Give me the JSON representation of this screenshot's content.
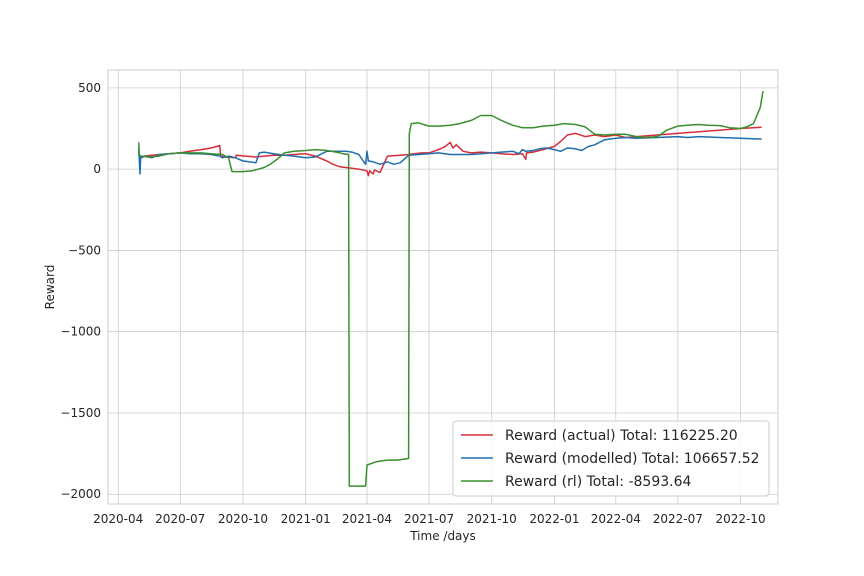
{
  "chart_data": {
    "type": "line",
    "title": "",
    "xlabel": "Time /days",
    "ylabel": "Reward",
    "x_ticks": [
      "2020-04",
      "2020-07",
      "2020-10",
      "2021-01",
      "2021-04",
      "2021-07",
      "2021-10",
      "2022-01",
      "2022-04",
      "2022-07",
      "2022-10"
    ],
    "y_ticks": [
      500,
      0,
      -500,
      -1000,
      -1500,
      -2000
    ],
    "y_tick_labels": [
      "500",
      "0",
      "−500",
      "−1000",
      "−1500",
      "−2000"
    ],
    "xlim": [
      "2020-03-17",
      "2022-11-25"
    ],
    "ylim": [
      -2060,
      610
    ],
    "grid": true,
    "legend_position": "lower-right",
    "series": [
      {
        "name": "Reward (actual) Total: 116225.20",
        "color": "#d62f3a",
        "x": [
          "2020-05-01",
          "2020-05-02",
          "2020-05-10",
          "2020-05-20",
          "2020-06-01",
          "2020-06-15",
          "2020-07-01",
          "2020-07-15",
          "2020-08-01",
          "2020-08-15",
          "2020-08-28",
          "2020-08-29",
          "2020-09-05",
          "2020-09-20",
          "2020-09-21",
          "2020-10-05",
          "2020-10-20",
          "2020-11-01",
          "2020-11-15",
          "2020-12-01",
          "2020-12-15",
          "2021-01-01",
          "2021-01-15",
          "2021-02-01",
          "2021-02-10",
          "2021-02-20",
          "2021-03-01",
          "2021-03-10",
          "2021-03-20",
          "2021-04-01",
          "2021-04-03",
          "2021-04-05",
          "2021-04-10",
          "2021-04-12",
          "2021-04-20",
          "2021-05-01",
          "2021-05-20",
          "2021-06-01",
          "2021-06-10",
          "2021-06-20",
          "2021-07-01",
          "2021-07-15",
          "2021-07-25",
          "2021-08-01",
          "2021-08-05",
          "2021-08-10",
          "2021-08-20",
          "2021-09-01",
          "2021-09-15",
          "2021-10-01",
          "2021-10-15",
          "2021-11-01",
          "2021-11-15",
          "2021-11-20",
          "2021-11-21",
          "2021-12-01",
          "2021-12-15",
          "2022-01-01",
          "2022-01-10",
          "2022-01-20",
          "2022-02-01",
          "2022-02-15",
          "2022-03-01",
          "2022-03-15",
          "2022-04-01",
          "2022-04-15",
          "2022-05-01",
          "2022-06-01",
          "2022-07-01",
          "2022-08-01",
          "2022-09-01",
          "2022-10-01",
          "2022-11-01"
        ],
        "values": [
          110,
          75,
          80,
          85,
          90,
          95,
          100,
          110,
          120,
          130,
          145,
          80,
          75,
          70,
          85,
          80,
          75,
          80,
          85,
          85,
          90,
          95,
          80,
          50,
          30,
          15,
          10,
          5,
          0,
          -10,
          -40,
          -10,
          -30,
          -5,
          -20,
          80,
          85,
          90,
          95,
          100,
          100,
          120,
          140,
          165,
          130,
          150,
          110,
          100,
          105,
          100,
          95,
          90,
          95,
          60,
          100,
          105,
          120,
          140,
          170,
          210,
          220,
          200,
          210,
          200,
          210,
          195,
          200,
          210,
          220,
          230,
          240,
          250,
          258
        ]
      },
      {
        "name": "Reward (modelled) Total: 106657.52",
        "color": "#1f6fad",
        "x": [
          "2020-05-01",
          "2020-05-03",
          "2020-05-04",
          "2020-05-05",
          "2020-05-10",
          "2020-05-20",
          "2020-06-01",
          "2020-06-15",
          "2020-07-01",
          "2020-07-15",
          "2020-08-01",
          "2020-08-15",
          "2020-08-28",
          "2020-09-01",
          "2020-09-10",
          "2020-09-20",
          "2020-10-01",
          "2020-10-10",
          "2020-10-20",
          "2020-10-25",
          "2020-11-01",
          "2020-11-15",
          "2020-12-01",
          "2020-12-15",
          "2021-01-01",
          "2021-01-15",
          "2021-02-01",
          "2021-02-15",
          "2021-03-01",
          "2021-03-10",
          "2021-03-20",
          "2021-03-30",
          "2021-04-01",
          "2021-04-03",
          "2021-04-10",
          "2021-04-20",
          "2021-05-01",
          "2021-05-10",
          "2021-05-20",
          "2021-06-01",
          "2021-06-15",
          "2021-07-01",
          "2021-07-15",
          "2021-08-01",
          "2021-08-15",
          "2021-09-01",
          "2021-09-15",
          "2021-10-01",
          "2021-10-15",
          "2021-11-01",
          "2021-11-10",
          "2021-11-15",
          "2021-11-20",
          "2021-12-01",
          "2021-12-10",
          "2021-12-20",
          "2022-01-01",
          "2022-01-10",
          "2022-01-20",
          "2022-02-01",
          "2022-02-10",
          "2022-02-20",
          "2022-03-01",
          "2022-03-15",
          "2022-04-01",
          "2022-04-15",
          "2022-05-01",
          "2022-06-01",
          "2022-07-01",
          "2022-07-15",
          "2022-08-01",
          "2022-09-01",
          "2022-10-01",
          "2022-11-01"
        ],
        "values": [
          130,
          -30,
          80,
          70,
          80,
          70,
          90,
          95,
          100,
          95,
          95,
          90,
          80,
          70,
          80,
          70,
          50,
          45,
          40,
          100,
          105,
          95,
          85,
          80,
          70,
          75,
          110,
          110,
          110,
          105,
          90,
          30,
          110,
          50,
          45,
          30,
          45,
          30,
          40,
          85,
          90,
          95,
          100,
          90,
          90,
          90,
          95,
          100,
          105,
          110,
          95,
          120,
          110,
          115,
          125,
          130,
          120,
          110,
          130,
          125,
          115,
          140,
          150,
          180,
          190,
          195,
          190,
          195,
          200,
          195,
          200,
          195,
          190,
          185
        ]
      },
      {
        "name": "Reward (rl) Total: -8593.64",
        "color": "#3a8f2e",
        "x": [
          "2020-05-01",
          "2020-05-02",
          "2020-05-05",
          "2020-05-15",
          "2020-05-30",
          "2020-06-15",
          "2020-07-01",
          "2020-07-15",
          "2020-08-01",
          "2020-08-15",
          "2020-09-01",
          "2020-09-10",
          "2020-09-15",
          "2020-10-01",
          "2020-10-15",
          "2020-11-01",
          "2020-11-10",
          "2020-11-20",
          "2020-12-01",
          "2020-12-15",
          "2021-01-01",
          "2021-01-15",
          "2021-02-01",
          "2021-02-15",
          "2021-02-25",
          "2021-03-05",
          "2021-03-06",
          "2021-03-30",
          "2021-04-01",
          "2021-04-15",
          "2021-05-01",
          "2021-05-15",
          "2021-06-01",
          "2021-06-02",
          "2021-06-05",
          "2021-06-15",
          "2021-07-01",
          "2021-07-15",
          "2021-08-01",
          "2021-08-15",
          "2021-09-01",
          "2021-09-15",
          "2021-10-01",
          "2021-10-15",
          "2021-11-01",
          "2021-11-15",
          "2021-12-01",
          "2021-12-15",
          "2022-01-01",
          "2022-01-15",
          "2022-02-01",
          "2022-02-15",
          "2022-03-01",
          "2022-03-15",
          "2022-04-01",
          "2022-04-15",
          "2022-05-01",
          "2022-05-15",
          "2022-06-01",
          "2022-06-15",
          "2022-07-01",
          "2022-07-15",
          "2022-08-01",
          "2022-08-15",
          "2022-09-01",
          "2022-09-15",
          "2022-10-01",
          "2022-10-10",
          "2022-10-20",
          "2022-10-25",
          "2022-10-30",
          "2022-11-01",
          "2022-11-03"
        ],
        "values": [
          165,
          85,
          80,
          75,
          80,
          95,
          100,
          100,
          100,
          95,
          90,
          70,
          -15,
          -15,
          -10,
          10,
          30,
          60,
          100,
          110,
          115,
          120,
          115,
          105,
          95,
          90,
          -1950,
          -1950,
          -1820,
          -1800,
          -1790,
          -1790,
          -1780,
          220,
          280,
          285,
          265,
          265,
          270,
          280,
          300,
          330,
          330,
          300,
          270,
          255,
          255,
          265,
          270,
          280,
          275,
          260,
          215,
          210,
          215,
          215,
          200,
          195,
          200,
          240,
          265,
          270,
          275,
          270,
          268,
          255,
          250,
          260,
          280,
          330,
          380,
          430,
          480
        ]
      }
    ]
  }
}
